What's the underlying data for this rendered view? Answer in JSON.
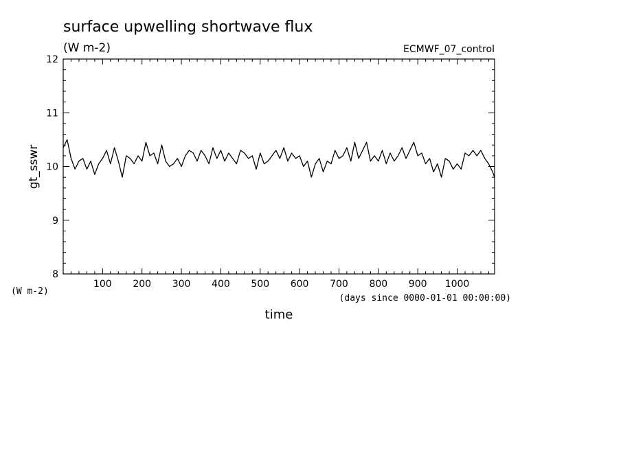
{
  "chart_data": {
    "type": "line",
    "title": "surface upwelling shortwave flux",
    "subtitle": "(W m-2)",
    "annotation": "ECMWF_07_control",
    "xlabel": "time",
    "xunits": "(days since 0000-01-01 00:00:00)",
    "ylabel": "gt_sswr",
    "yunits": "(W m-2)",
    "xlim": [
      0,
      1095
    ],
    "ylim": [
      8,
      12
    ],
    "xticks": [
      100,
      200,
      300,
      400,
      500,
      600,
      700,
      800,
      900,
      1000
    ],
    "xtick_labels": [
      "100",
      "200",
      "300",
      "400",
      "500",
      "600",
      "700",
      "800",
      "900",
      "1000"
    ],
    "yticks": [
      8,
      9,
      10,
      11,
      12
    ],
    "ytick_labels": [
      "8",
      "9",
      "10",
      "11",
      "12"
    ],
    "grid": false,
    "line_color": "#000000",
    "series": [
      {
        "x": [
          0,
          10,
          20,
          30,
          40,
          50,
          60,
          70,
          80,
          90,
          100,
          110,
          120,
          130,
          140,
          150,
          160,
          170,
          180,
          190,
          200,
          210,
          220,
          230,
          240,
          250,
          260,
          270,
          280,
          290,
          300,
          310,
          320,
          330,
          340,
          350,
          360,
          370,
          380,
          390,
          400,
          410,
          420,
          430,
          440,
          450,
          460,
          470,
          480,
          490,
          500,
          510,
          520,
          530,
          540,
          550,
          560,
          570,
          580,
          590,
          600,
          610,
          620,
          630,
          640,
          650,
          660,
          670,
          680,
          690,
          700,
          710,
          720,
          730,
          740,
          750,
          760,
          770,
          780,
          790,
          800,
          810,
          820,
          830,
          840,
          850,
          860,
          870,
          880,
          890,
          900,
          910,
          920,
          930,
          940,
          950,
          960,
          970,
          980,
          990,
          1000,
          1010,
          1020,
          1030,
          1040,
          1050,
          1060,
          1070,
          1080,
          1090,
          1095
        ],
        "values": [
          10.35,
          10.5,
          10.15,
          9.95,
          10.1,
          10.15,
          9.95,
          10.1,
          9.85,
          10.05,
          10.15,
          10.3,
          10.05,
          10.35,
          10.1,
          9.8,
          10.2,
          10.15,
          10.05,
          10.2,
          10.1,
          10.45,
          10.2,
          10.25,
          10.05,
          10.4,
          10.1,
          10.0,
          10.05,
          10.15,
          10.0,
          10.2,
          10.3,
          10.25,
          10.1,
          10.3,
          10.2,
          10.05,
          10.35,
          10.15,
          10.3,
          10.1,
          10.25,
          10.15,
          10.05,
          10.3,
          10.25,
          10.15,
          10.2,
          9.95,
          10.25,
          10.05,
          10.1,
          10.2,
          10.3,
          10.15,
          10.35,
          10.1,
          10.25,
          10.15,
          10.2,
          10.0,
          10.1,
          9.8,
          10.05,
          10.15,
          9.9,
          10.1,
          10.05,
          10.3,
          10.15,
          10.2,
          10.35,
          10.1,
          10.45,
          10.15,
          10.3,
          10.45,
          10.1,
          10.2,
          10.1,
          10.3,
          10.05,
          10.25,
          10.1,
          10.2,
          10.35,
          10.15,
          10.3,
          10.45,
          10.2,
          10.25,
          10.05,
          10.15,
          9.9,
          10.05,
          9.8,
          10.15,
          10.1,
          9.95,
          10.05,
          9.95,
          10.25,
          10.2,
          10.3,
          10.2,
          10.3,
          10.15,
          10.05,
          9.9,
          9.8
        ]
      }
    ]
  }
}
